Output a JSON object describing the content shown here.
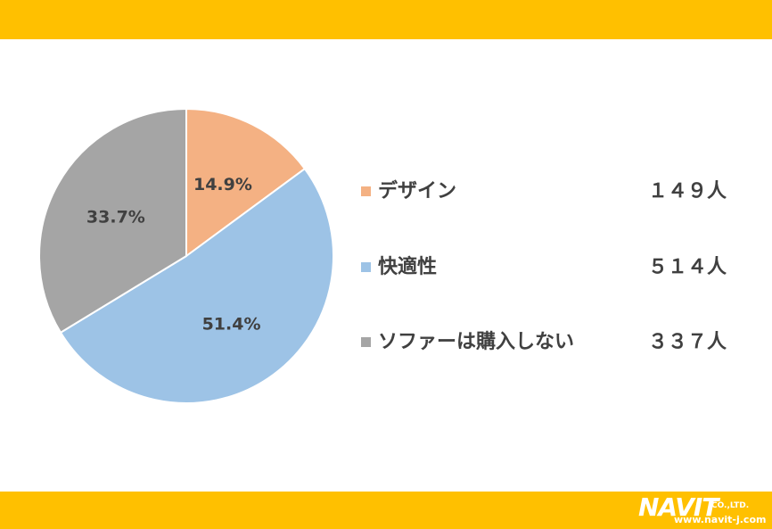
{
  "colors": {
    "band": "#FFC000",
    "text": "#404040"
  },
  "chart_data": {
    "type": "pie",
    "categories": [
      "デザイン",
      "快適性",
      "ソファーは購入しない"
    ],
    "values": [
      14.9,
      51.4,
      33.7
    ],
    "data_labels": [
      "14.9%",
      "51.4%",
      "33.7%"
    ],
    "colors": [
      "#F4B183",
      "#9DC3E6",
      "#A5A5A5"
    ],
    "legend_position": "right"
  },
  "legend": [
    {
      "label": "デザイン",
      "count": "１４９人"
    },
    {
      "label": "快適性",
      "count": "５１４人"
    },
    {
      "label": "ソファーは購入しない",
      "count": "３３７人"
    }
  ],
  "logo": {
    "name": "NAVIT",
    "suffix": "CO.,LTD.",
    "url": "www.navit-j.com"
  }
}
